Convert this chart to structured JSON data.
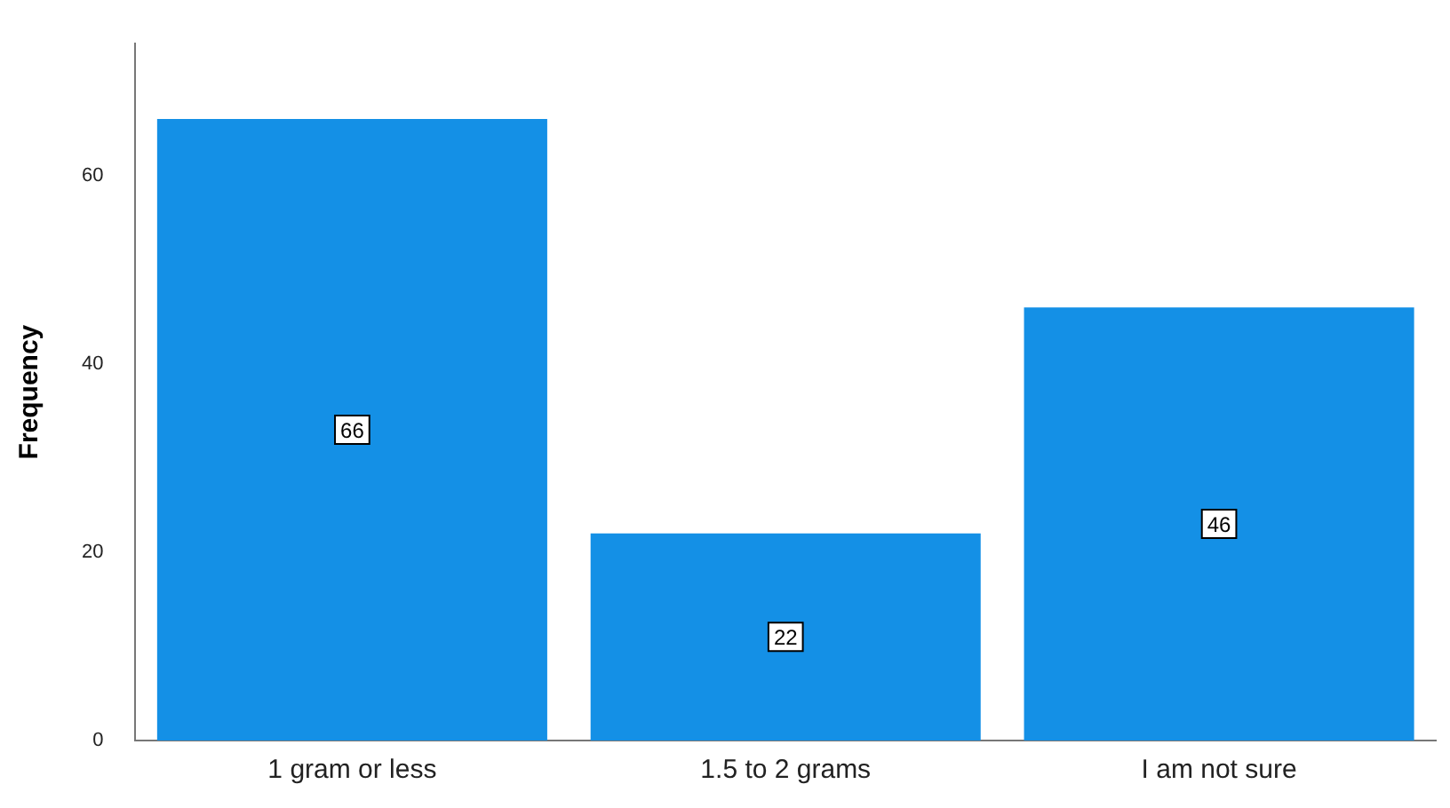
{
  "chart_data": {
    "type": "bar",
    "categories": [
      "1 gram or less",
      "1.5 to 2 grams",
      "I am not sure"
    ],
    "values": [
      66,
      22,
      46
    ],
    "color": "#1490e6",
    "ylabel": "Frequency",
    "ylim": [
      0,
      74
    ],
    "yticks": [
      0,
      20,
      40,
      60
    ],
    "grid": false,
    "legend": false,
    "data_labels": true
  }
}
